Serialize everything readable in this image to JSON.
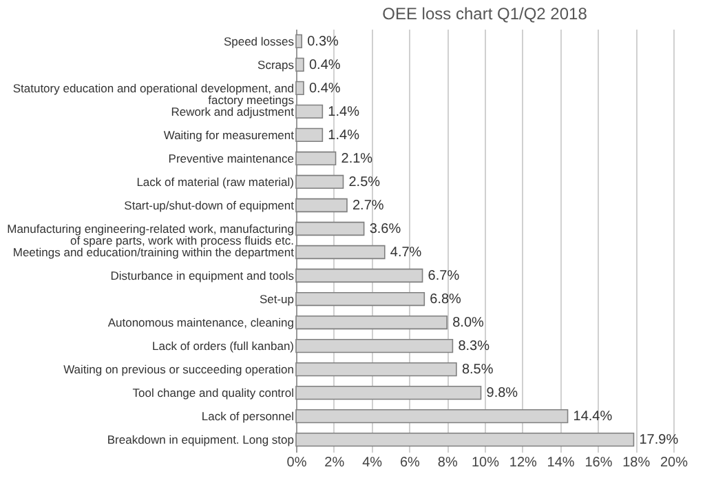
{
  "chart_data": {
    "type": "bar",
    "orientation": "horizontal",
    "title": "OEE loss chart Q1/Q2 2018",
    "categories": [
      "Speed losses",
      "Scraps",
      "Statutory education and operational development, and factory meetings",
      "Rework and adjustment",
      "Waiting for measurement",
      "Preventive maintenance",
      "Lack of material (raw material)",
      "Start-up/shut-down of equipment",
      "Manufacturing engineering-related work, manufacturing of spare parts, work with process fluids etc.",
      "Meetings and education/training within the department",
      "Disturbance in equipment and tools",
      "Set-up",
      "Autonomous maintenance, cleaning",
      "Lack of orders (full kanban)",
      "Waiting on previous or succeeding operation",
      "Tool change and quality control",
      "Lack of personnel",
      "Breakdown in equipment. Long stop"
    ],
    "values": [
      0.3,
      0.4,
      0.4,
      1.4,
      1.4,
      2.1,
      2.5,
      2.7,
      3.6,
      4.7,
      6.7,
      6.8,
      8.0,
      8.3,
      8.5,
      9.8,
      14.4,
      17.9
    ],
    "value_labels": [
      "0.3%",
      "0.4%",
      "0.4%",
      "1.4%",
      "1.4%",
      "2.1%",
      "2.5%",
      "2.7%",
      "3.6%",
      "4.7%",
      "6.7%",
      "6.8%",
      "8.0%",
      "8.3%",
      "8.5%",
      "9.8%",
      "14.4%",
      "17.9%"
    ],
    "color": "#d4d4d4",
    "xlim": [
      0,
      20
    ],
    "xticks": [
      {
        "value": 0,
        "label": "0%"
      },
      {
        "value": 2,
        "label": "2%"
      },
      {
        "value": 4,
        "label": "4%"
      },
      {
        "value": 6,
        "label": "6%"
      },
      {
        "value": 8,
        "label": "8%"
      },
      {
        "value": 10,
        "label": "10%"
      },
      {
        "value": 12,
        "label": "12%"
      },
      {
        "value": 14,
        "label": "14%"
      },
      {
        "value": 16,
        "label": "16%"
      },
      {
        "value": 18,
        "label": "18%"
      },
      {
        "value": 20,
        "label": "20%"
      }
    ],
    "grid": "x"
  }
}
